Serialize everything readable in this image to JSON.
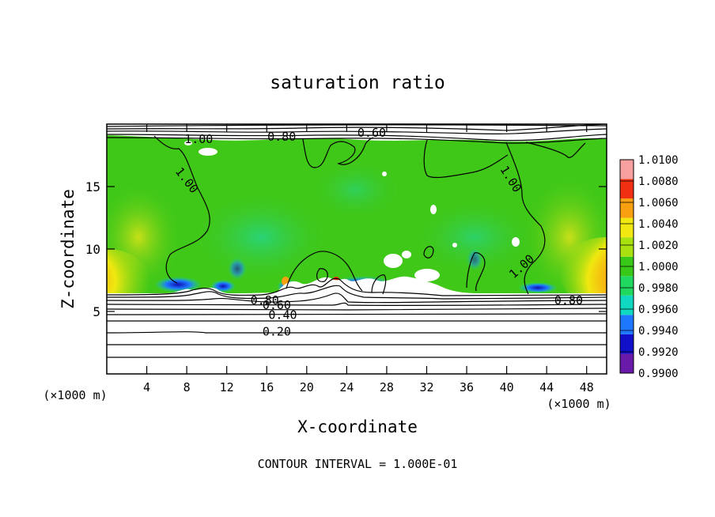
{
  "chart_data": {
    "type": "heatmap",
    "title": "saturation ratio",
    "xlabel": "X-coordinate",
    "ylabel": "Z-coordinate",
    "x_unit_left": "(×1000 m)",
    "x_unit_right": "(×1000 m)",
    "xlim": [
      0,
      50
    ],
    "ylim": [
      0,
      20
    ],
    "x_ticks": [
      4,
      8,
      12,
      16,
      20,
      24,
      28,
      32,
      36,
      40,
      44,
      48
    ],
    "y_ticks": [
      5,
      10,
      15
    ],
    "footnote": "CONTOUR INTERVAL = 1.000E-01",
    "colorbar": {
      "levels": [
        "0.9900",
        "0.9920",
        "0.9940",
        "0.9960",
        "0.9980",
        "1.0000",
        "1.0020",
        "1.0040",
        "1.0060",
        "1.0080",
        "1.0100"
      ],
      "colors": [
        "#6a1aa8",
        "#1010c8",
        "#1e78ff",
        "#10d8c0",
        "#20d860",
        "#38c818",
        "#a8e010",
        "#f0e810",
        "#f8a010",
        "#f03010",
        "#f8a0a0"
      ]
    },
    "contour_labels": [
      {
        "text": "1.00",
        "x": 9.2,
        "y": 18.8
      },
      {
        "text": "0.80",
        "x": 17.5,
        "y": 19.0
      },
      {
        "text": "0.60",
        "x": 26.5,
        "y": 19.3
      },
      {
        "text": "1.00",
        "x": 8.0,
        "y": 15.5,
        "rotate": 52
      },
      {
        "text": "1.00",
        "x": 40.4,
        "y": 15.6,
        "rotate": 58
      },
      {
        "text": "1.00",
        "x": 41.5,
        "y": 8.6,
        "rotate": -42
      },
      {
        "text": "0.80",
        "x": 15.8,
        "y": 5.9
      },
      {
        "text": "0.60",
        "x": 17.0,
        "y": 5.5
      },
      {
        "text": "0.40",
        "x": 17.6,
        "y": 4.7
      },
      {
        "text": "0.20",
        "x": 17.0,
        "y": 3.4
      },
      {
        "text": "0.80",
        "x": 46.2,
        "y": 5.9
      }
    ]
  }
}
